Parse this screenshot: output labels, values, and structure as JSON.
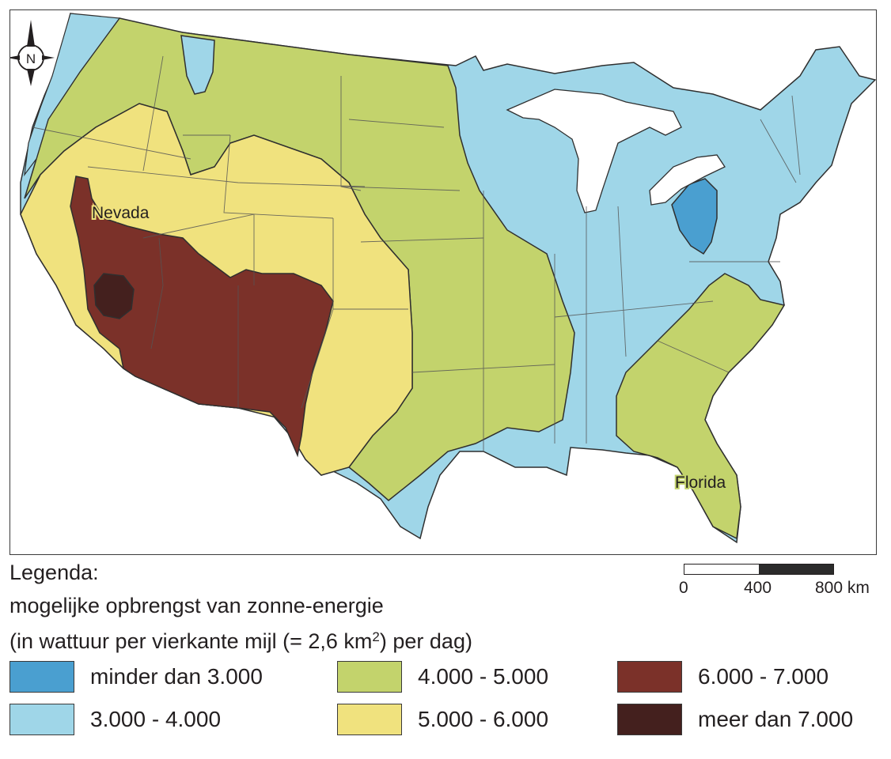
{
  "map": {
    "labels": {
      "nevada": "Nevada",
      "florida": "Florida"
    },
    "compass": "N"
  },
  "colors": {
    "class1": "#4a9fd0",
    "class2": "#9fd6e8",
    "class3": "#c3d36c",
    "class4": "#f0e27e",
    "class5": "#7b3129",
    "class6": "#44201e",
    "outline": "#2f2f2f",
    "water": "#ffffff"
  },
  "legend": {
    "title": "Legenda:",
    "subtitle_line1": "mogelijke opbrengst van zonne-energie",
    "subtitle_line2_pre": "(in wattuur per vierkante mijl (= 2,6 km",
    "subtitle_line2_sup": "2",
    "subtitle_line2_post": ") per dag)",
    "items": [
      {
        "label": "minder dan 3.000"
      },
      {
        "label": "3.000 - 4.000"
      },
      {
        "label": "4.000 - 5.000"
      },
      {
        "label": "5.000 - 6.000"
      },
      {
        "label": "6.000 - 7.000"
      },
      {
        "label": "meer dan 7.000"
      }
    ]
  },
  "scale": {
    "label_0": "0",
    "label_400": "400",
    "label_800": "800 km"
  }
}
